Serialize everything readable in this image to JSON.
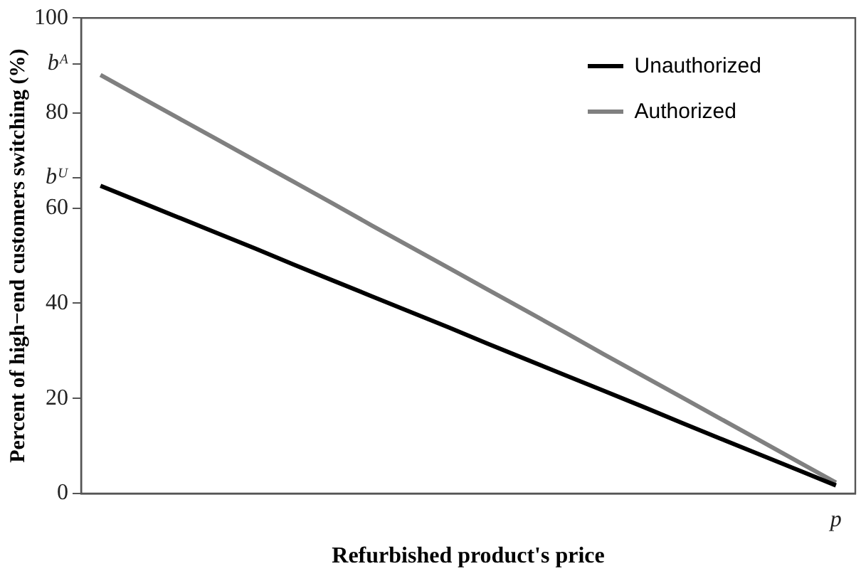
{
  "chart_data": {
    "type": "line",
    "xlabel": "Refurbished product's price",
    "ylabel": "Percent of high−end customers switching (%)",
    "categories": [
      null,
      null,
      null,
      null,
      null,
      null,
      null,
      null,
      null,
      null,
      null,
      null,
      null,
      null,
      null,
      null,
      null,
      null,
      null,
      "p"
    ],
    "series": [
      {
        "name": "Unauthorized",
        "color": "#000000",
        "values": [
          64.7,
          61.4,
          58.1,
          54.8,
          51.5,
          48.1,
          44.8,
          41.5,
          38.2,
          34.9,
          31.5,
          28.2,
          24.9,
          21.6,
          18.3,
          14.9,
          11.6,
          8.3,
          5.0,
          1.7
        ]
      },
      {
        "name": "Authorized",
        "color": "#808080",
        "values": [
          88.0,
          83.5,
          79.0,
          74.5,
          70.0,
          65.5,
          61.0,
          56.4,
          51.9,
          47.4,
          42.9,
          38.4,
          33.9,
          29.3,
          24.8,
          20.3,
          15.8,
          11.3,
          6.8,
          2.3
        ]
      }
    ],
    "ylim": [
      0,
      100
    ],
    "yticks": [
      {
        "value": 0,
        "label": "0"
      },
      {
        "value": 20,
        "label": "20"
      },
      {
        "value": 40,
        "label": "40"
      },
      {
        "value": 60,
        "label": "60"
      },
      {
        "value": 66.4,
        "label": "bᵁ"
      },
      {
        "value": 80,
        "label": "80"
      },
      {
        "value": 90.3,
        "label": "bᴬ"
      },
      {
        "value": 100,
        "label": "100"
      }
    ],
    "grid": false,
    "legend": "top right",
    "marker": "none",
    "line_style": "solid"
  }
}
